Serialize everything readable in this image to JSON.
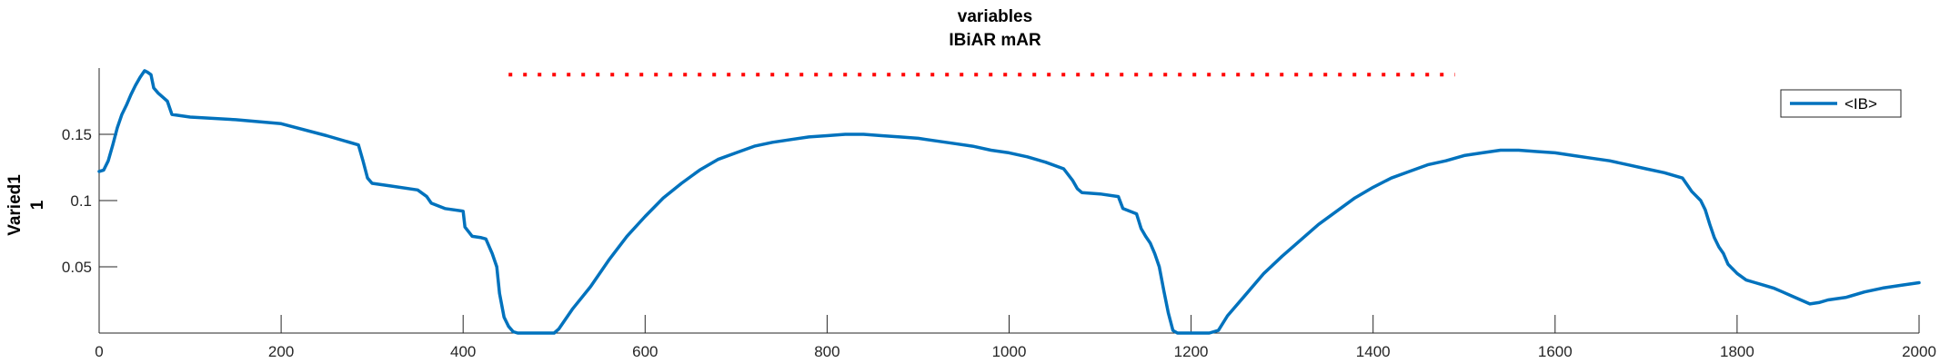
{
  "chart_data": {
    "type": "line",
    "title": [
      "variables",
      "IBiAR mAR"
    ],
    "xlabel": "",
    "ylabel": [
      "Varied1",
      "1"
    ],
    "xlim": [
      0,
      2000
    ],
    "ylim": [
      0,
      0.2
    ],
    "xticks": [
      0,
      200,
      400,
      600,
      800,
      1000,
      1200,
      1400,
      1600,
      1800,
      2000
    ],
    "xtick_labels": [
      "0",
      "200",
      "400",
      "600",
      "800",
      "1000",
      "1200",
      "1400",
      "1600",
      "1800",
      "2000"
    ],
    "yticks": [
      0.05,
      0.1,
      0.15
    ],
    "ytick_labels": [
      "0.05",
      "0.1",
      "0.15"
    ],
    "grid": false,
    "legend_position": "top-right",
    "series": [
      {
        "name": "<IB>",
        "color": "#0072BD",
        "x": [
          0,
          5,
          10,
          15,
          20,
          25,
          30,
          35,
          40,
          45,
          50,
          53,
          57,
          60,
          65,
          70,
          75,
          80,
          100,
          150,
          200,
          250,
          285,
          290,
          295,
          300,
          320,
          350,
          360,
          365,
          380,
          400,
          402,
          410,
          420,
          425,
          432,
          437,
          440,
          445,
          450,
          455,
          460,
          480,
          500,
          505,
          520,
          540,
          560,
          580,
          600,
          620,
          640,
          660,
          680,
          700,
          720,
          740,
          760,
          780,
          800,
          820,
          840,
          860,
          880,
          900,
          920,
          940,
          960,
          980,
          1000,
          1020,
          1040,
          1060,
          1070,
          1075,
          1080,
          1100,
          1120,
          1125,
          1140,
          1145,
          1150,
          1155,
          1160,
          1165,
          1170,
          1175,
          1180,
          1185,
          1200,
          1220,
          1230,
          1240,
          1260,
          1280,
          1300,
          1320,
          1340,
          1360,
          1380,
          1400,
          1420,
          1440,
          1460,
          1480,
          1500,
          1520,
          1540,
          1560,
          1580,
          1600,
          1620,
          1640,
          1660,
          1680,
          1700,
          1720,
          1740,
          1750,
          1760,
          1765,
          1770,
          1775,
          1780,
          1785,
          1790,
          1800,
          1810,
          1820,
          1830,
          1840,
          1850,
          1860,
          1870,
          1880,
          1890,
          1900,
          1920,
          1940,
          1960,
          1980,
          2000
        ],
        "y": [
          0.122,
          0.123,
          0.13,
          0.142,
          0.155,
          0.165,
          0.172,
          0.18,
          0.187,
          0.193,
          0.198,
          0.197,
          0.195,
          0.185,
          0.181,
          0.178,
          0.175,
          0.165,
          0.163,
          0.161,
          0.158,
          0.149,
          0.142,
          0.13,
          0.117,
          0.113,
          0.111,
          0.108,
          0.103,
          0.098,
          0.094,
          0.092,
          0.08,
          0.073,
          0.072,
          0.071,
          0.06,
          0.05,
          0.03,
          0.012,
          0.005,
          0.001,
          0.0,
          0.0,
          0.0,
          0.003,
          0.018,
          0.035,
          0.055,
          0.073,
          0.088,
          0.102,
          0.113,
          0.123,
          0.131,
          0.136,
          0.141,
          0.144,
          0.146,
          0.148,
          0.149,
          0.15,
          0.15,
          0.149,
          0.148,
          0.147,
          0.145,
          0.143,
          0.141,
          0.138,
          0.136,
          0.133,
          0.129,
          0.124,
          0.115,
          0.109,
          0.106,
          0.105,
          0.103,
          0.094,
          0.09,
          0.079,
          0.073,
          0.068,
          0.06,
          0.05,
          0.032,
          0.015,
          0.002,
          0.0,
          0.0,
          0.0,
          0.002,
          0.013,
          0.029,
          0.045,
          0.058,
          0.07,
          0.082,
          0.092,
          0.102,
          0.11,
          0.117,
          0.122,
          0.127,
          0.13,
          0.134,
          0.136,
          0.138,
          0.138,
          0.137,
          0.136,
          0.134,
          0.132,
          0.13,
          0.127,
          0.124,
          0.121,
          0.117,
          0.107,
          0.1,
          0.093,
          0.082,
          0.072,
          0.065,
          0.06,
          0.052,
          0.045,
          0.04,
          0.038,
          0.036,
          0.034,
          0.031,
          0.028,
          0.025,
          0.022,
          0.023,
          0.025,
          0.027,
          0.031,
          0.034,
          0.036,
          0.038
        ]
      }
    ],
    "markers": {
      "name": "",
      "color": "#FF0000",
      "style": "dotted",
      "x_start": 450,
      "x_end": 1490,
      "y": 0.195
    }
  }
}
